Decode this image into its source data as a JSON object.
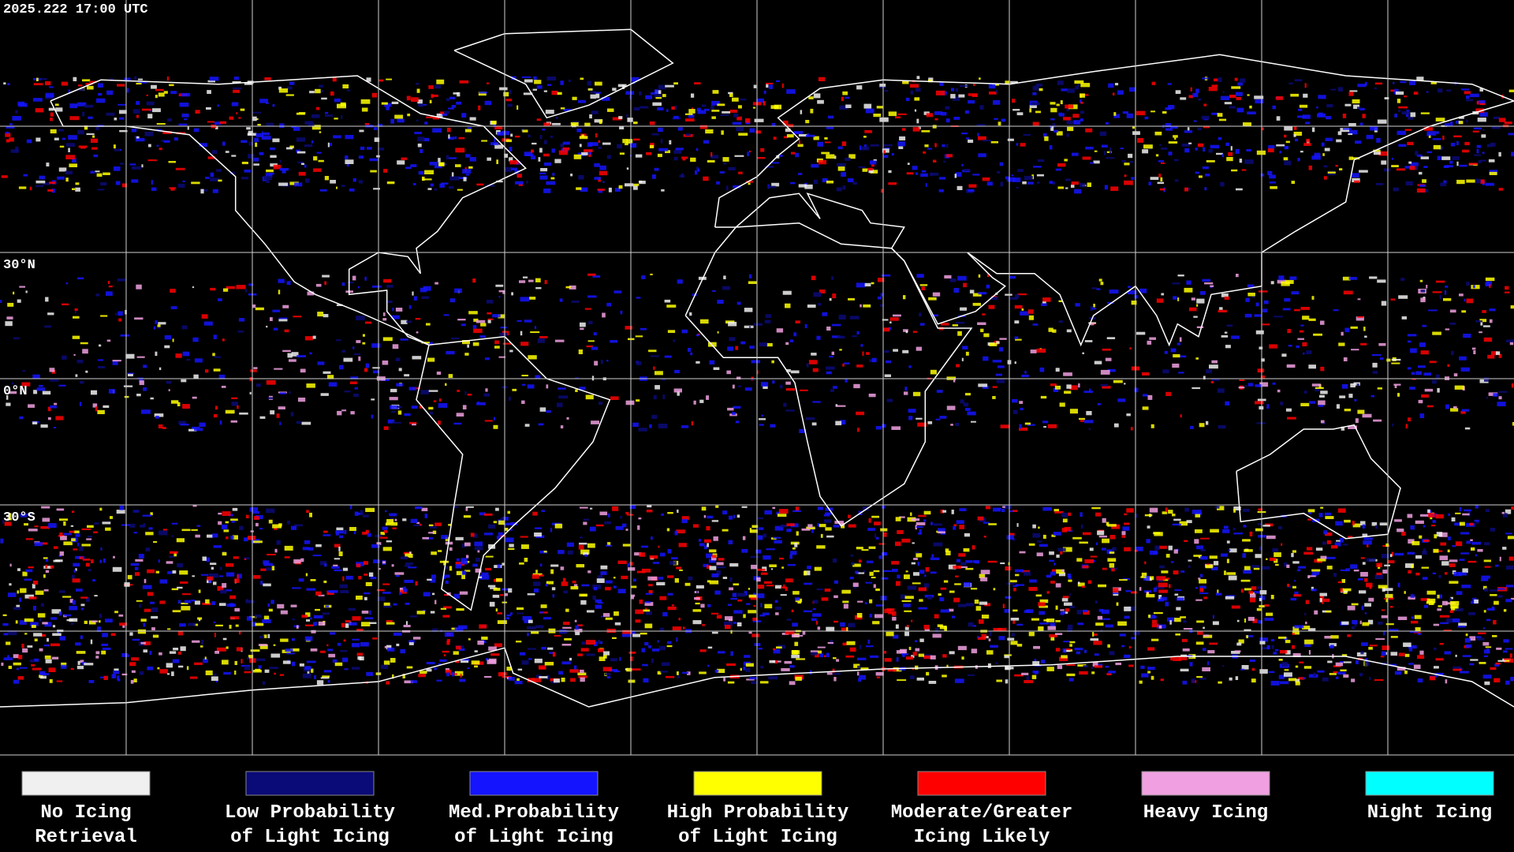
{
  "header": {
    "timestamp": "2025.222 17:00 UTC"
  },
  "map": {
    "lat_labels": [
      "30°N",
      "0°N",
      "30°S"
    ]
  },
  "legend": {
    "items": [
      {
        "lines": [
          "No Icing",
          "Retrieval"
        ],
        "color": "#f0f0f0"
      },
      {
        "lines": [
          "Low Probability",
          "of Light Icing"
        ],
        "color": "#0a0a78"
      },
      {
        "lines": [
          "Med.Probability",
          "of Light Icing"
        ],
        "color": "#1414ff"
      },
      {
        "lines": [
          "High Probability",
          "of Light Icing"
        ],
        "color": "#ffff00"
      },
      {
        "lines": [
          "Moderate/Greater",
          "Icing Likely"
        ],
        "color": "#ff0000"
      },
      {
        "lines": [
          "Heavy Icing"
        ],
        "color": "#f0a0e0"
      },
      {
        "lines": [
          "Night Icing"
        ],
        "color": "#00ffff"
      }
    ]
  }
}
